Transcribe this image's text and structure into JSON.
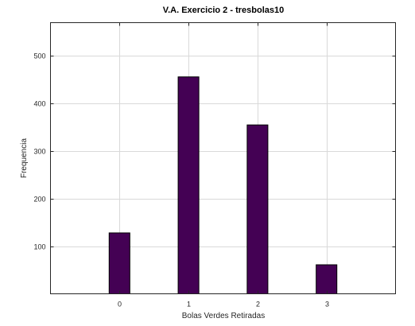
{
  "chart_data": {
    "type": "bar",
    "title": "V.A. Exercicio 2 - tresbolas10",
    "xlabel": "Bolas Verdes Retiradas",
    "ylabel": "Frequencia",
    "categories": [
      "0",
      "1",
      "2",
      "3"
    ],
    "x": [
      0,
      1,
      2,
      3
    ],
    "values": [
      128,
      456,
      355,
      61
    ],
    "xlim": [
      -1,
      4
    ],
    "ylim": [
      0,
      570
    ],
    "yticks": [
      100,
      200,
      300,
      400,
      500
    ],
    "grid": true,
    "legend": "none",
    "bar_color": "#440154",
    "bar_edge_color": "#000000"
  }
}
